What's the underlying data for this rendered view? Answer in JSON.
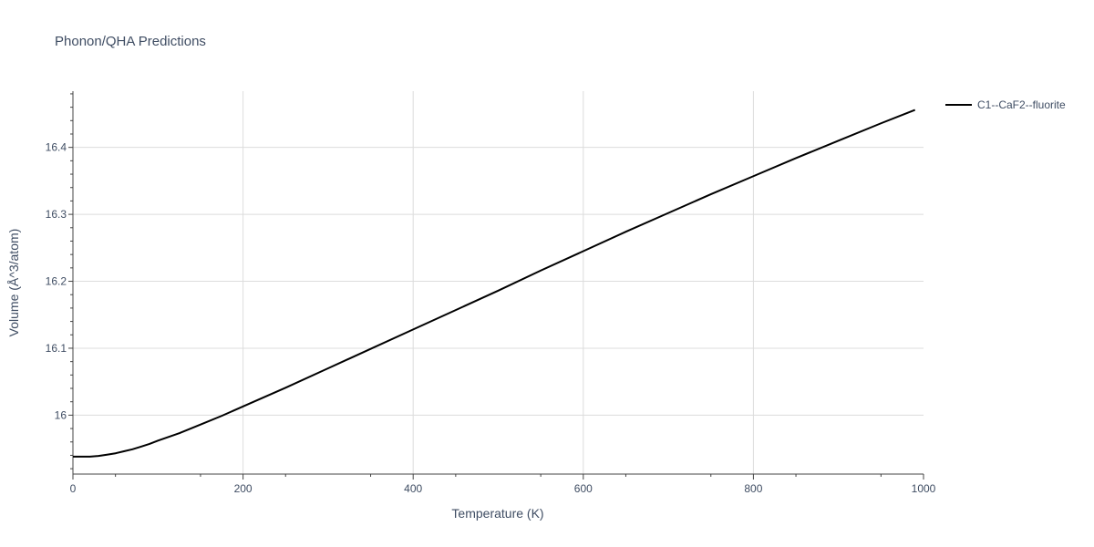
{
  "chart_data": {
    "type": "line",
    "title": "Phonon/QHA Predictions",
    "xlabel": "Temperature (K)",
    "ylabel": "Volume (Å^3/atom)",
    "xlim": [
      0,
      1000
    ],
    "ylim": [
      15.912,
      16.484
    ],
    "x_ticks": [
      0,
      200,
      400,
      600,
      800,
      1000
    ],
    "x_tick_labels": [
      "0",
      "200",
      "400",
      "600",
      "800",
      "1000"
    ],
    "y_ticks": [
      16.0,
      16.1,
      16.2,
      16.3,
      16.4
    ],
    "y_tick_labels": [
      "16",
      "16.1",
      "16.2",
      "16.3",
      "16.4"
    ],
    "grid": true,
    "legend_position": "top-right outside",
    "series": [
      {
        "name": "C1--CaF2--fluorite",
        "color": "#000000",
        "x": [
          0,
          10,
          20,
          30,
          40,
          50,
          60,
          70,
          80,
          90,
          100,
          125,
          150,
          175,
          200,
          250,
          300,
          350,
          400,
          450,
          500,
          550,
          600,
          650,
          700,
          750,
          800,
          850,
          900,
          950,
          990
        ],
        "y": [
          15.938,
          15.938,
          15.938,
          15.939,
          15.941,
          15.943,
          15.946,
          15.949,
          15.953,
          15.957,
          15.962,
          15.973,
          15.986,
          15.999,
          16.013,
          16.041,
          16.07,
          16.099,
          16.128,
          16.157,
          16.186,
          16.216,
          16.245,
          16.274,
          16.302,
          16.33,
          16.357,
          16.384,
          16.41,
          16.436,
          16.456
        ]
      }
    ]
  }
}
